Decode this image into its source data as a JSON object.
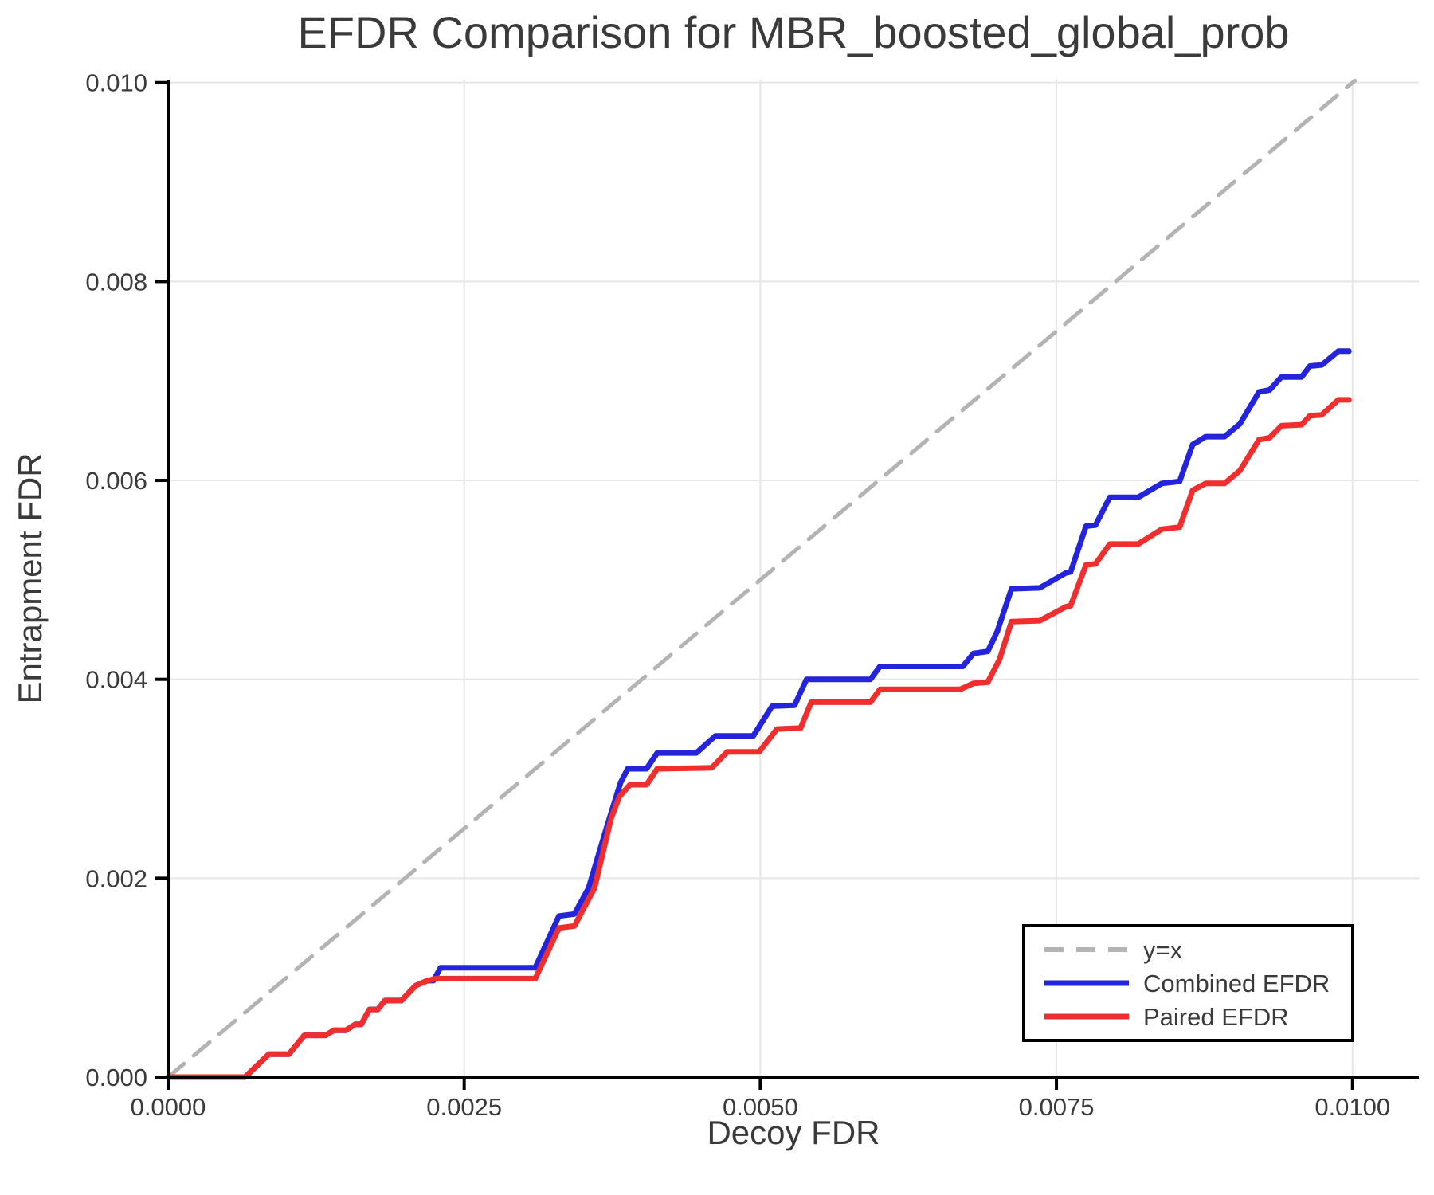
{
  "chart_data": {
    "type": "line",
    "title": "EFDR Comparison for MBR_boosted_global_prob",
    "xlabel": "Decoy FDR",
    "ylabel": "Entrapment FDR",
    "xlim": [
      0,
      0.01056
    ],
    "ylim": [
      0,
      0.01003
    ],
    "grid": true,
    "legend_position": "bottom-right",
    "x_ticks": {
      "values": [
        0,
        0.0025,
        0.005,
        0.0075,
        0.01
      ],
      "labels": [
        "0.0000",
        "0.0025",
        "0.0050",
        "0.0075",
        "0.0100"
      ]
    },
    "y_ticks": {
      "values": [
        0,
        0.002,
        0.004,
        0.006,
        0.008,
        0.01
      ],
      "labels": [
        "0.000",
        "0.002",
        "0.004",
        "0.006",
        "0.008",
        "0.010"
      ]
    },
    "colors": {
      "identity_line": "#b3b3b3",
      "combined_efdr": "#2424dc",
      "paired_efdr": "#f02e2e",
      "gridline": "#e5e5e5",
      "axis": "#000000",
      "text": "#3a3a3a"
    },
    "series": [
      {
        "name": "y=x",
        "style": "dashed",
        "color": "#b3b3b3",
        "points": [
          [
            0,
            0
          ],
          [
            0.01002,
            0.01002
          ]
        ]
      },
      {
        "name": "Combined EFDR",
        "style": "solid",
        "color": "#2424dc",
        "points": [
          [
            0.0,
            0.0
          ],
          [
            0.00065,
            0.0
          ],
          [
            0.00085,
            0.00023
          ],
          [
            0.00102,
            0.00023
          ],
          [
            0.00115,
            0.00042
          ],
          [
            0.00133,
            0.00042
          ],
          [
            0.0014,
            0.00047
          ],
          [
            0.0015,
            0.00047
          ],
          [
            0.00158,
            0.00053
          ],
          [
            0.00163,
            0.00053
          ],
          [
            0.0017,
            0.00068
          ],
          [
            0.00177,
            0.00068
          ],
          [
            0.00183,
            0.00077
          ],
          [
            0.00197,
            0.00077
          ],
          [
            0.00209,
            0.00092
          ],
          [
            0.00219,
            0.00097
          ],
          [
            0.00224,
            0.00097
          ],
          [
            0.0023,
            0.0011
          ],
          [
            0.0031,
            0.0011
          ],
          [
            0.0033,
            0.00162
          ],
          [
            0.00343,
            0.00164
          ],
          [
            0.00355,
            0.0019
          ],
          [
            0.0037,
            0.0025
          ],
          [
            0.00382,
            0.00296
          ],
          [
            0.00388,
            0.0031
          ],
          [
            0.00404,
            0.0031
          ],
          [
            0.00413,
            0.00326
          ],
          [
            0.00446,
            0.00326
          ],
          [
            0.00462,
            0.00343
          ],
          [
            0.00494,
            0.00343
          ],
          [
            0.0051,
            0.00373
          ],
          [
            0.00529,
            0.00374
          ],
          [
            0.00539,
            0.004
          ],
          [
            0.00593,
            0.004
          ],
          [
            0.00601,
            0.00413
          ],
          [
            0.00671,
            0.00413
          ],
          [
            0.0068,
            0.00426
          ],
          [
            0.00692,
            0.00428
          ],
          [
            0.007,
            0.00448
          ],
          [
            0.00712,
            0.00491
          ],
          [
            0.00736,
            0.00492
          ],
          [
            0.00758,
            0.00507
          ],
          [
            0.00762,
            0.00508
          ],
          [
            0.00775,
            0.00554
          ],
          [
            0.00783,
            0.00555
          ],
          [
            0.00795,
            0.00583
          ],
          [
            0.00819,
            0.00583
          ],
          [
            0.00839,
            0.00597
          ],
          [
            0.00854,
            0.00599
          ],
          [
            0.00865,
            0.00636
          ],
          [
            0.00876,
            0.00644
          ],
          [
            0.00892,
            0.00644
          ],
          [
            0.00905,
            0.00657
          ],
          [
            0.00921,
            0.00689
          ],
          [
            0.0093,
            0.00691
          ],
          [
            0.0094,
            0.00704
          ],
          [
            0.00957,
            0.00704
          ],
          [
            0.00964,
            0.00715
          ],
          [
            0.00974,
            0.00716
          ],
          [
            0.00988,
            0.0073
          ],
          [
            0.00997,
            0.0073
          ]
        ]
      },
      {
        "name": "Paired EFDR",
        "style": "solid",
        "color": "#f02e2e",
        "points": [
          [
            0.0,
            0.0
          ],
          [
            0.00065,
            0.0
          ],
          [
            0.00085,
            0.00023
          ],
          [
            0.00102,
            0.00023
          ],
          [
            0.00115,
            0.00042
          ],
          [
            0.00133,
            0.00042
          ],
          [
            0.0014,
            0.00047
          ],
          [
            0.0015,
            0.00047
          ],
          [
            0.00158,
            0.00053
          ],
          [
            0.00163,
            0.00053
          ],
          [
            0.0017,
            0.00068
          ],
          [
            0.00177,
            0.00068
          ],
          [
            0.00183,
            0.00077
          ],
          [
            0.00197,
            0.00077
          ],
          [
            0.00209,
            0.00092
          ],
          [
            0.00219,
            0.00097
          ],
          [
            0.00226,
            0.00099
          ],
          [
            0.0031,
            0.00099
          ],
          [
            0.0033,
            0.0015
          ],
          [
            0.00343,
            0.00152
          ],
          [
            0.0036,
            0.0019
          ],
          [
            0.00374,
            0.0026
          ],
          [
            0.00381,
            0.00282
          ],
          [
            0.0039,
            0.00294
          ],
          [
            0.00404,
            0.00294
          ],
          [
            0.00413,
            0.0031
          ],
          [
            0.00459,
            0.00311
          ],
          [
            0.00472,
            0.00327
          ],
          [
            0.00499,
            0.00327
          ],
          [
            0.00514,
            0.0035
          ],
          [
            0.00534,
            0.00351
          ],
          [
            0.00543,
            0.00377
          ],
          [
            0.00593,
            0.00377
          ],
          [
            0.00601,
            0.0039
          ],
          [
            0.00669,
            0.0039
          ],
          [
            0.0068,
            0.00396
          ],
          [
            0.00692,
            0.00397
          ],
          [
            0.00702,
            0.0042
          ],
          [
            0.00712,
            0.00458
          ],
          [
            0.00736,
            0.00459
          ],
          [
            0.00758,
            0.00473
          ],
          [
            0.00762,
            0.00474
          ],
          [
            0.00775,
            0.00515
          ],
          [
            0.00783,
            0.00516
          ],
          [
            0.00795,
            0.00536
          ],
          [
            0.00819,
            0.00536
          ],
          [
            0.00839,
            0.00551
          ],
          [
            0.00854,
            0.00553
          ],
          [
            0.00865,
            0.0059
          ],
          [
            0.00876,
            0.00597
          ],
          [
            0.00892,
            0.00597
          ],
          [
            0.00905,
            0.0061
          ],
          [
            0.00921,
            0.00641
          ],
          [
            0.0093,
            0.00643
          ],
          [
            0.0094,
            0.00655
          ],
          [
            0.00957,
            0.00656
          ],
          [
            0.00964,
            0.00665
          ],
          [
            0.00974,
            0.00666
          ],
          [
            0.00988,
            0.00681
          ],
          [
            0.00997,
            0.00681
          ]
        ]
      }
    ]
  }
}
